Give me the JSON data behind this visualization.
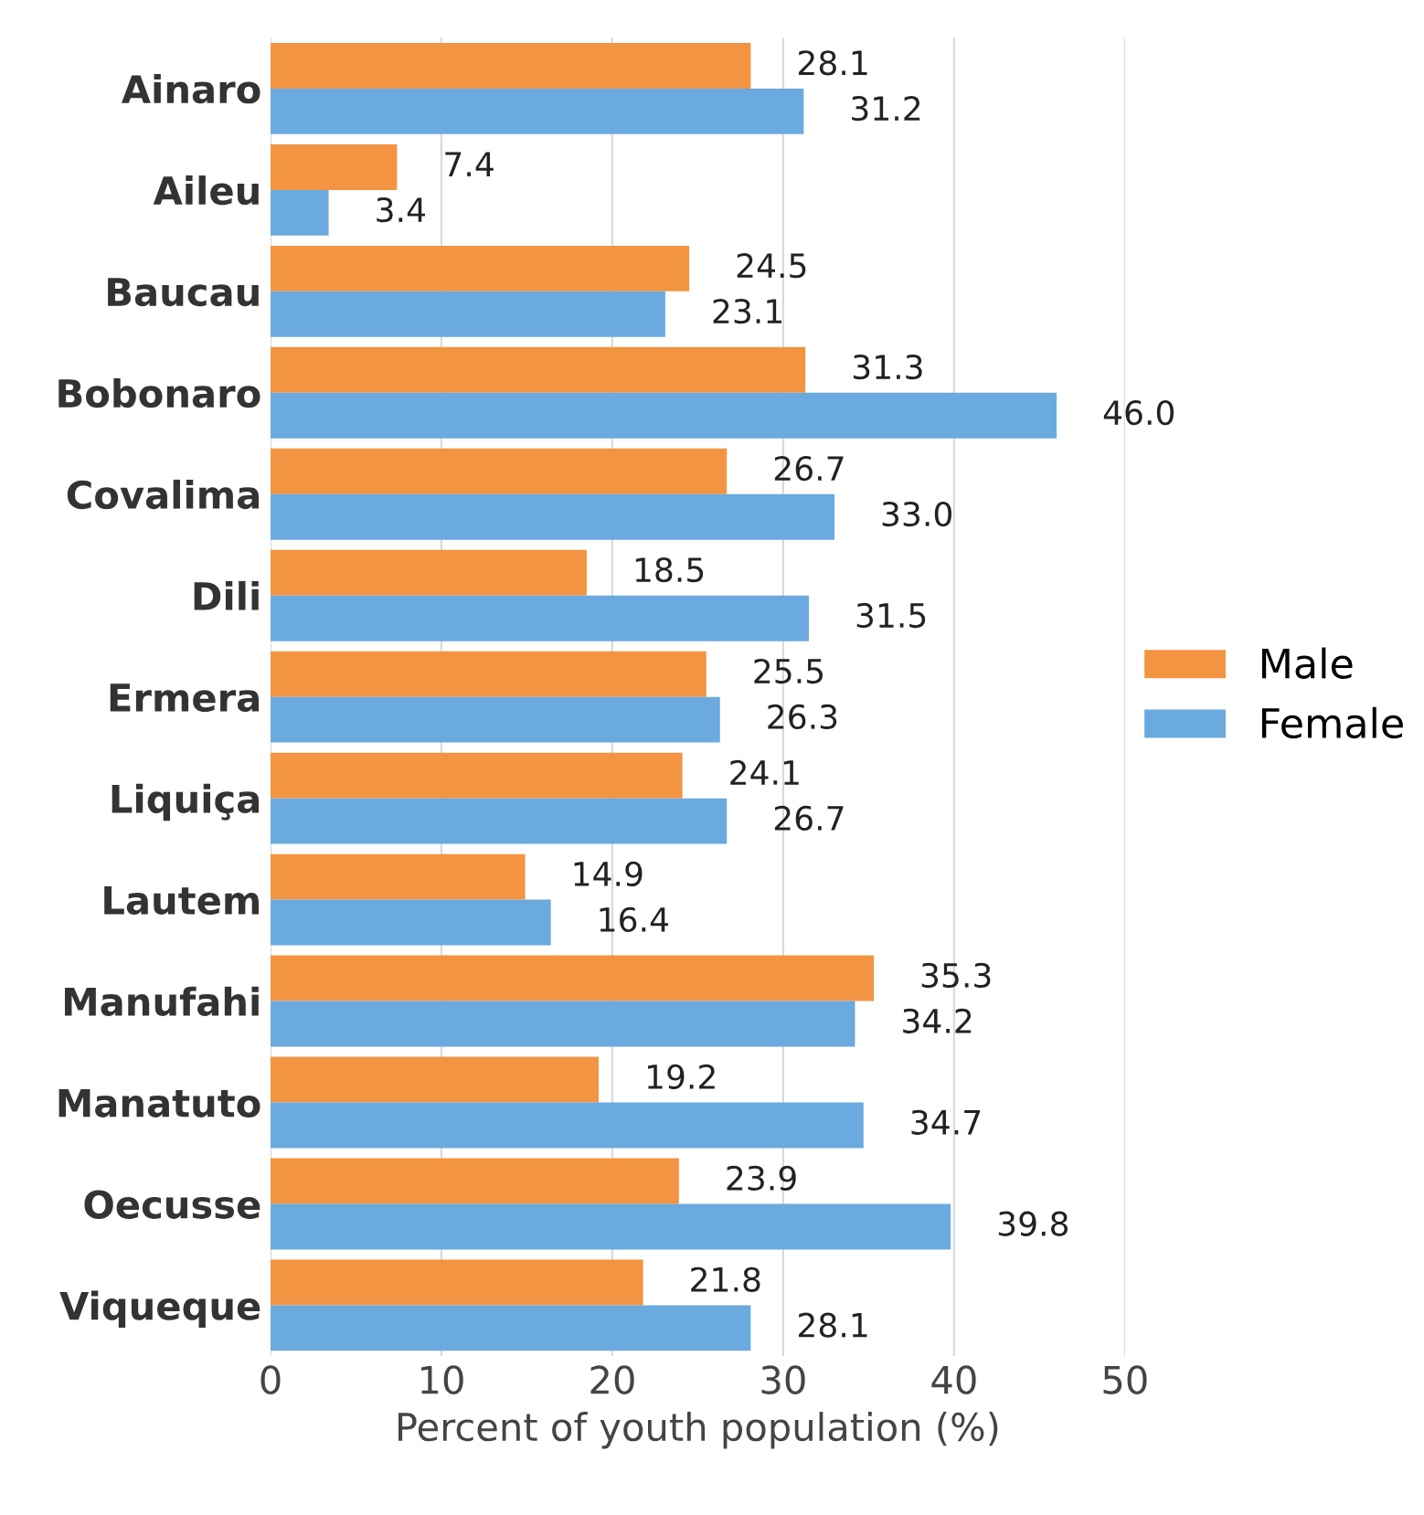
{
  "chart_data": {
    "type": "bar",
    "orientation": "horizontal",
    "xlabel": "Percent of youth population (%)",
    "categories": [
      "Ainaro",
      "Aileu",
      "Baucau",
      "Bobonaro",
      "Covalima",
      "Dili",
      "Ermera",
      "Liquiça",
      "Lautem",
      "Manufahi",
      "Manatuto",
      "Oecusse",
      "Viqueque"
    ],
    "series": [
      {
        "name": "Male",
        "color": "#f39442",
        "values": [
          28.1,
          7.4,
          24.5,
          31.3,
          26.7,
          18.5,
          25.5,
          24.1,
          14.9,
          35.3,
          19.2,
          23.9,
          21.8
        ],
        "value_labels": [
          "28.1",
          "7.4",
          "24.5",
          "31.3",
          "26.7",
          "18.5",
          "25.5",
          "24.1",
          "14.9",
          "35.3",
          "19.2",
          "23.9",
          "21.8"
        ]
      },
      {
        "name": "Female",
        "color": "#6aaade",
        "values": [
          31.2,
          3.4,
          23.1,
          46.0,
          33.0,
          31.5,
          26.3,
          26.7,
          16.4,
          34.2,
          34.7,
          39.8,
          28.1
        ],
        "value_labels": [
          "31.2",
          "3.4",
          "23.1",
          "46.0",
          "33.0",
          "31.5",
          "26.3",
          "26.7",
          "16.4",
          "34.2",
          "34.7",
          "39.8",
          "28.1"
        ]
      }
    ],
    "xlim": [
      0,
      50
    ],
    "xticks": [
      0,
      10,
      20,
      30,
      40,
      50
    ],
    "grid": "x",
    "legend": "right"
  }
}
